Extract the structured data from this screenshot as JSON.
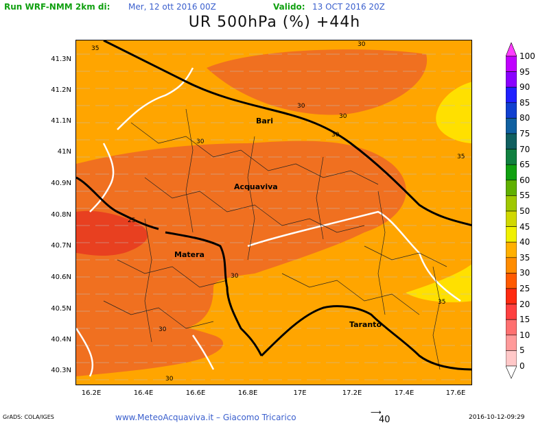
{
  "header": {
    "run_label": "Run WRF-NMM 2km di:",
    "init_time": "Mer, 12 ott 2016 00Z",
    "valid_label": "Valido:",
    "valid_time": "13 OCT 2016 20Z"
  },
  "title": "UR 500hPa (%) +44h",
  "map": {
    "y_axis_labels": [
      "41.3N",
      "41.2N",
      "41.1N",
      "41N",
      "40.9N",
      "40.8N",
      "40.7N",
      "40.6N",
      "40.5N",
      "40.4N",
      "40.3N"
    ],
    "x_axis_labels": [
      "16.2E",
      "16.4E",
      "16.6E",
      "16.8E",
      "17E",
      "17.2E",
      "17.4E",
      "17.6E"
    ],
    "cities": [
      "Bari",
      "Acquaviva",
      "Matera",
      "Taranto"
    ],
    "contour_labels": [
      "35",
      "30",
      "30",
      "30",
      "30",
      "30",
      "35",
      "25",
      "30",
      "30",
      "35",
      "30"
    ],
    "colors": {
      "c25": "#ff8c00",
      "c30": "#ff6e00",
      "c35_fill": "#ffa500",
      "c30_fill": "#f07020",
      "c25_fill": "#e84020",
      "c40_fill": "#ffe000"
    }
  },
  "legend": {
    "levels": [
      "100",
      "95",
      "90",
      "85",
      "80",
      "75",
      "70",
      "65",
      "60",
      "55",
      "50",
      "45",
      "40",
      "35",
      "30",
      "25",
      "20",
      "15",
      "10",
      "5",
      "0"
    ],
    "colors": [
      "#ff3dff",
      "#c000ff",
      "#8a00ff",
      "#2020ff",
      "#1040d0",
      "#1060a0",
      "#106060",
      "#108040",
      "#10a010",
      "#60b000",
      "#a0c800",
      "#d0d800",
      "#f0f000",
      "#ffb000",
      "#ff8c00",
      "#ff5a00",
      "#ff2a10",
      "#ff4040",
      "#ff7070",
      "#ff9a9a",
      "#ffc8c8"
    ]
  },
  "footer": {
    "grads": "GrADS: COLA/IGES",
    "site": "www.MeteoAcquaviva.it  –  Giacomo Tricarico",
    "vector_ref": "40",
    "timestamp": "2016-10-12-09:29"
  }
}
